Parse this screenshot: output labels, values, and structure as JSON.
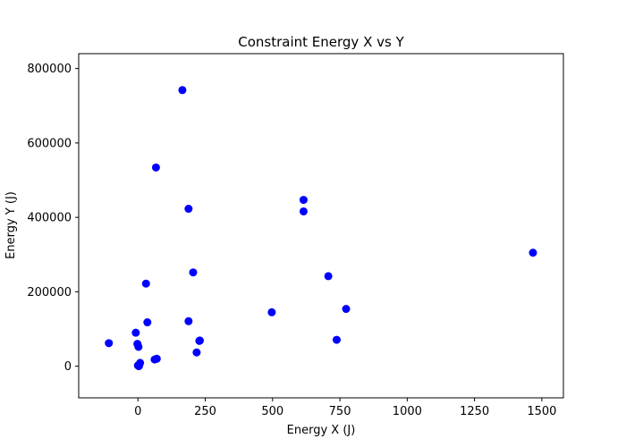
{
  "chart_data": {
    "type": "scatter",
    "title": "Constraint Energy X vs Y",
    "xlabel": "Energy X (J)",
    "ylabel": "Energy Y (J)",
    "xlim": [
      -220,
      1580
    ],
    "ylim": [
      -85000,
      840000
    ],
    "xticks": [
      0,
      250,
      500,
      750,
      1000,
      1250,
      1500
    ],
    "yticks": [
      0,
      200000,
      400000,
      600000,
      800000
    ],
    "grid": false,
    "marker_color": "#0000ff",
    "points": [
      {
        "x": -108,
        "y": 62000
      },
      {
        "x": -8,
        "y": 90000
      },
      {
        "x": -2,
        "y": 60000
      },
      {
        "x": 2,
        "y": 52000
      },
      {
        "x": 0,
        "y": 2000
      },
      {
        "x": 3,
        "y": 0
      },
      {
        "x": 5,
        "y": 4000
      },
      {
        "x": 8,
        "y": 9000
      },
      {
        "x": 4,
        "y": 1000
      },
      {
        "x": 30,
        "y": 222000
      },
      {
        "x": 35,
        "y": 118000
      },
      {
        "x": 62,
        "y": 18000
      },
      {
        "x": 70,
        "y": 20000
      },
      {
        "x": 67,
        "y": 534000
      },
      {
        "x": 165,
        "y": 742000
      },
      {
        "x": 188,
        "y": 121000
      },
      {
        "x": 188,
        "y": 423000
      },
      {
        "x": 205,
        "y": 252000
      },
      {
        "x": 218,
        "y": 37000
      },
      {
        "x": 228,
        "y": 68000
      },
      {
        "x": 230,
        "y": 69000
      },
      {
        "x": 497,
        "y": 145000
      },
      {
        "x": 615,
        "y": 447000
      },
      {
        "x": 615,
        "y": 416000
      },
      {
        "x": 707,
        "y": 242000
      },
      {
        "x": 738,
        "y": 71000
      },
      {
        "x": 773,
        "y": 154000
      },
      {
        "x": 1467,
        "y": 305000
      }
    ]
  }
}
